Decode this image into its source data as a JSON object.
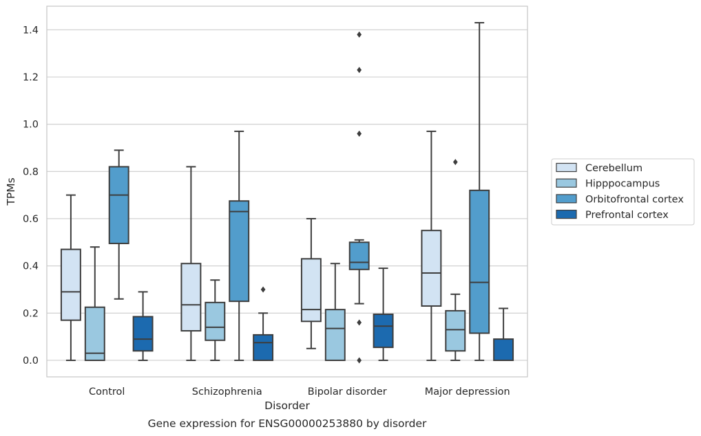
{
  "chart_data": {
    "type": "box",
    "title": "Gene expression for ENSG00000253880 by disorder",
    "xlabel": "Disorder",
    "ylabel": "TPMs",
    "ylim": [
      -0.07,
      1.5
    ],
    "yticks": [
      "0.0",
      "0.2",
      "0.4",
      "0.6",
      "0.8",
      "1.0",
      "1.2",
      "1.4"
    ],
    "grid": true,
    "legend_position": "right",
    "categories": [
      "Control",
      "Schizophrenia",
      "Bipolar disorder",
      "Major depression"
    ],
    "series": [
      {
        "name": "Cerebellum",
        "color": "#d2e3f3",
        "boxes": [
          {
            "whisker_low": 0.0,
            "q1": 0.17,
            "median": 0.29,
            "q3": 0.47,
            "whisker_high": 0.7,
            "outliers": []
          },
          {
            "whisker_low": 0.0,
            "q1": 0.125,
            "median": 0.235,
            "q3": 0.41,
            "whisker_high": 0.82,
            "outliers": []
          },
          {
            "whisker_low": 0.05,
            "q1": 0.165,
            "median": 0.215,
            "q3": 0.43,
            "whisker_high": 0.6,
            "outliers": []
          },
          {
            "whisker_low": 0.0,
            "q1": 0.23,
            "median": 0.37,
            "q3": 0.55,
            "whisker_high": 0.97,
            "outliers": []
          }
        ]
      },
      {
        "name": "Hipppocampus",
        "color": "#9ac8e0",
        "boxes": [
          {
            "whisker_low": 0.0,
            "q1": 0.0,
            "median": 0.03,
            "q3": 0.225,
            "whisker_high": 0.48,
            "outliers": []
          },
          {
            "whisker_low": 0.0,
            "q1": 0.085,
            "median": 0.14,
            "q3": 0.245,
            "whisker_high": 0.34,
            "outliers": []
          },
          {
            "whisker_low": 0.0,
            "q1": 0.0,
            "median": 0.135,
            "q3": 0.215,
            "whisker_high": 0.41,
            "outliers": []
          },
          {
            "whisker_low": 0.0,
            "q1": 0.04,
            "median": 0.13,
            "q3": 0.21,
            "whisker_high": 0.28,
            "outliers": [
              0.84
            ]
          }
        ]
      },
      {
        "name": "Orbitofrontal cortex",
        "color": "#529dcc",
        "boxes": [
          {
            "whisker_low": 0.26,
            "q1": 0.495,
            "median": 0.7,
            "q3": 0.82,
            "whisker_high": 0.89,
            "outliers": []
          },
          {
            "whisker_low": 0.0,
            "q1": 0.25,
            "median": 0.63,
            "q3": 0.675,
            "whisker_high": 0.97,
            "outliers": []
          },
          {
            "whisker_low": 0.24,
            "q1": 0.385,
            "median": 0.415,
            "q3": 0.5,
            "whisker_high": 0.51,
            "outliers": [
              0.16,
              0.0,
              0.96,
              1.23,
              1.38
            ]
          },
          {
            "whisker_low": 0.0,
            "q1": 0.115,
            "median": 0.33,
            "q3": 0.72,
            "whisker_high": 1.43,
            "outliers": []
          }
        ]
      },
      {
        "name": "Prefrontal cortex",
        "color": "#1c6aaf",
        "boxes": [
          {
            "whisker_low": 0.0,
            "q1": 0.04,
            "median": 0.09,
            "q3": 0.185,
            "whisker_high": 0.29,
            "outliers": []
          },
          {
            "whisker_low": 0.0,
            "q1": 0.0,
            "median": 0.075,
            "q3": 0.108,
            "whisker_high": 0.2,
            "outliers": [
              0.3
            ]
          },
          {
            "whisker_low": 0.0,
            "q1": 0.055,
            "median": 0.145,
            "q3": 0.195,
            "whisker_high": 0.39,
            "outliers": []
          },
          {
            "whisker_low": 0.0,
            "q1": 0.0,
            "median": 0.0,
            "q3": 0.09,
            "whisker_high": 0.22,
            "outliers": []
          }
        ]
      }
    ]
  },
  "style": {
    "line_color": "#3d3d3d",
    "grid_color": "#cccccc",
    "frame_color": "#c8c8c8"
  }
}
